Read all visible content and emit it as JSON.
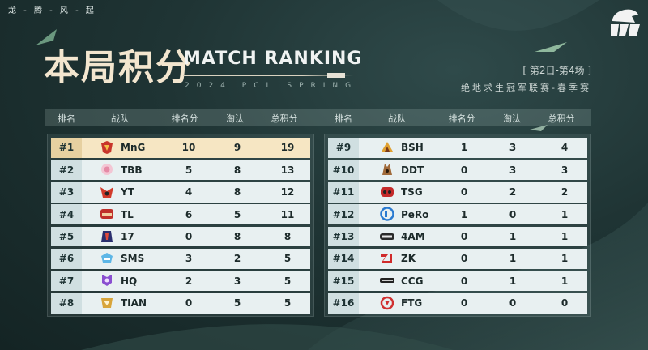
{
  "header": {
    "slogan": "龙 - 腾 - 风 - 起",
    "title_cn": "本局积分",
    "title_en": "MATCH RANKING",
    "subtitle": "2024 PCL SPRING",
    "match_info": "[ 第2日-第4场 ]",
    "event": "绝地求生冠军联赛-春季赛"
  },
  "columns": {
    "rank": "排名",
    "team": "战队",
    "placement": "排名分",
    "kills": "淘汰",
    "total": "总积分"
  },
  "left_rows": [
    {
      "rank": "#1",
      "team": "MnG",
      "placement": "10",
      "kills": "9",
      "total": "19",
      "logo_color": "#c8352b"
    },
    {
      "rank": "#2",
      "team": "TBB",
      "placement": "5",
      "kills": "8",
      "total": "13",
      "logo_color": "#e58aa6"
    },
    {
      "rank": "#3",
      "team": "YT",
      "placement": "4",
      "kills": "8",
      "total": "12",
      "logo_color": "#d23a2a"
    },
    {
      "rank": "#4",
      "team": "TL",
      "placement": "6",
      "kills": "5",
      "total": "11",
      "logo_color": "#c0302a"
    },
    {
      "rank": "#5",
      "team": "17",
      "placement": "0",
      "kills": "8",
      "total": "8",
      "logo_color": "#2a2f6e"
    },
    {
      "rank": "#6",
      "team": "SMS",
      "placement": "3",
      "kills": "2",
      "total": "5",
      "logo_color": "#5db6e6"
    },
    {
      "rank": "#7",
      "team": "HQ",
      "placement": "2",
      "kills": "3",
      "total": "5",
      "logo_color": "#8a4fd0"
    },
    {
      "rank": "#8",
      "team": "TIAN",
      "placement": "0",
      "kills": "5",
      "total": "5",
      "logo_color": "#d8a43a"
    }
  ],
  "right_rows": [
    {
      "rank": "#9",
      "team": "BSH",
      "placement": "1",
      "kills": "3",
      "total": "4",
      "logo_color": "#e0a030"
    },
    {
      "rank": "#10",
      "team": "DDT",
      "placement": "0",
      "kills": "3",
      "total": "3",
      "logo_color": "#a06a3a"
    },
    {
      "rank": "#11",
      "team": "TSG",
      "placement": "0",
      "kills": "2",
      "total": "2",
      "logo_color": "#c42a2a"
    },
    {
      "rank": "#12",
      "team": "PeRo",
      "placement": "1",
      "kills": "0",
      "total": "1",
      "logo_color": "#2a7ad0"
    },
    {
      "rank": "#13",
      "team": "4AM",
      "placement": "0",
      "kills": "1",
      "total": "1",
      "logo_color": "#2a2a2a"
    },
    {
      "rank": "#14",
      "team": "ZK",
      "placement": "0",
      "kills": "1",
      "total": "1",
      "logo_color": "#d02a2a"
    },
    {
      "rank": "#15",
      "team": "CCG",
      "placement": "0",
      "kills": "1",
      "total": "1",
      "logo_color": "#222222"
    },
    {
      "rank": "#16",
      "team": "FTG",
      "placement": "0",
      "kills": "0",
      "total": "0",
      "logo_color": "#d03030"
    }
  ]
}
